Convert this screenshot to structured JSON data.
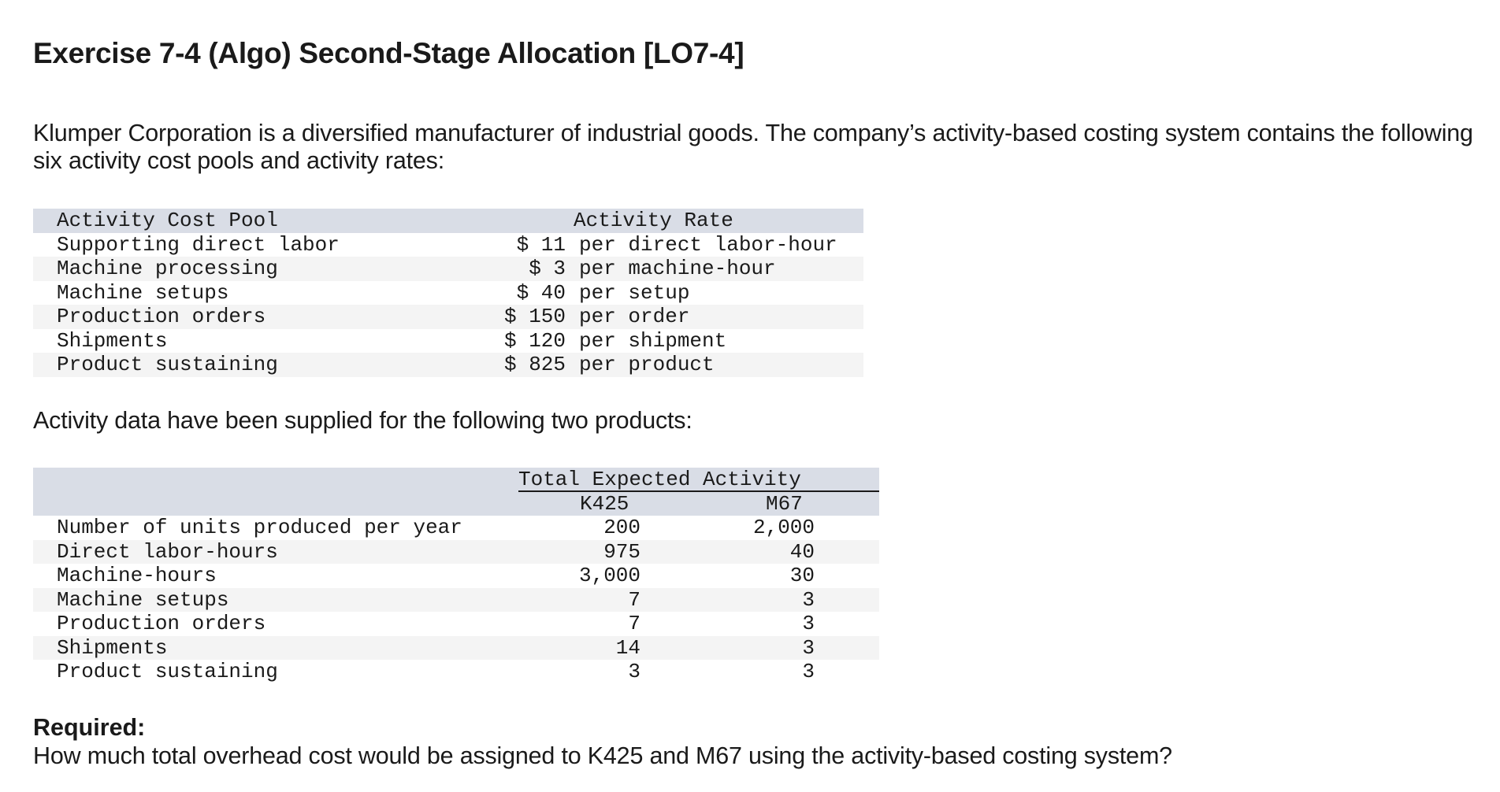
{
  "title": "Exercise 7-4 (Algo) Second-Stage Allocation [LO7-4]",
  "intro": "Klumper Corporation is a diversified manufacturer of industrial goods. The company’s activity-based costing system contains the following six activity cost pools and activity rates:",
  "rates_table": {
    "headers": {
      "pool": "Activity Cost Pool",
      "rate": "Activity Rate"
    },
    "rows": [
      {
        "pool": "Supporting direct labor",
        "amount": "$ 11",
        "unit": "per direct labor-hour"
      },
      {
        "pool": "Machine processing",
        "amount": "$ 3",
        "unit": "per machine-hour"
      },
      {
        "pool": "Machine setups",
        "amount": "$ 40",
        "unit": "per setup"
      },
      {
        "pool": "Production orders",
        "amount": "$ 150",
        "unit": "per order"
      },
      {
        "pool": "Shipments",
        "amount": "$ 120",
        "unit": "per shipment"
      },
      {
        "pool": "Product sustaining",
        "amount": "$ 825",
        "unit": "per product"
      }
    ]
  },
  "mid_text": "Activity data have been supplied for the following two products:",
  "activity_table": {
    "group_header": "Total Expected Activity",
    "columns": [
      "K425",
      "M67"
    ],
    "rows": [
      {
        "label": "Number of units produced per year",
        "k425": "200",
        "m67": "2,000"
      },
      {
        "label": "Direct labor-hours",
        "k425": "975",
        "m67": "40"
      },
      {
        "label": "Machine-hours",
        "k425": "3,000",
        "m67": "30"
      },
      {
        "label": "Machine setups",
        "k425": "7",
        "m67": "3"
      },
      {
        "label": "Production orders",
        "k425": "7",
        "m67": "3"
      },
      {
        "label": "Shipments",
        "k425": "14",
        "m67": "3"
      },
      {
        "label": "Product sustaining",
        "k425": "3",
        "m67": "3"
      }
    ]
  },
  "required": {
    "label": "Required:",
    "question": "How much total overhead cost would be assigned to K425 and M67 using the activity-based costing system?"
  }
}
